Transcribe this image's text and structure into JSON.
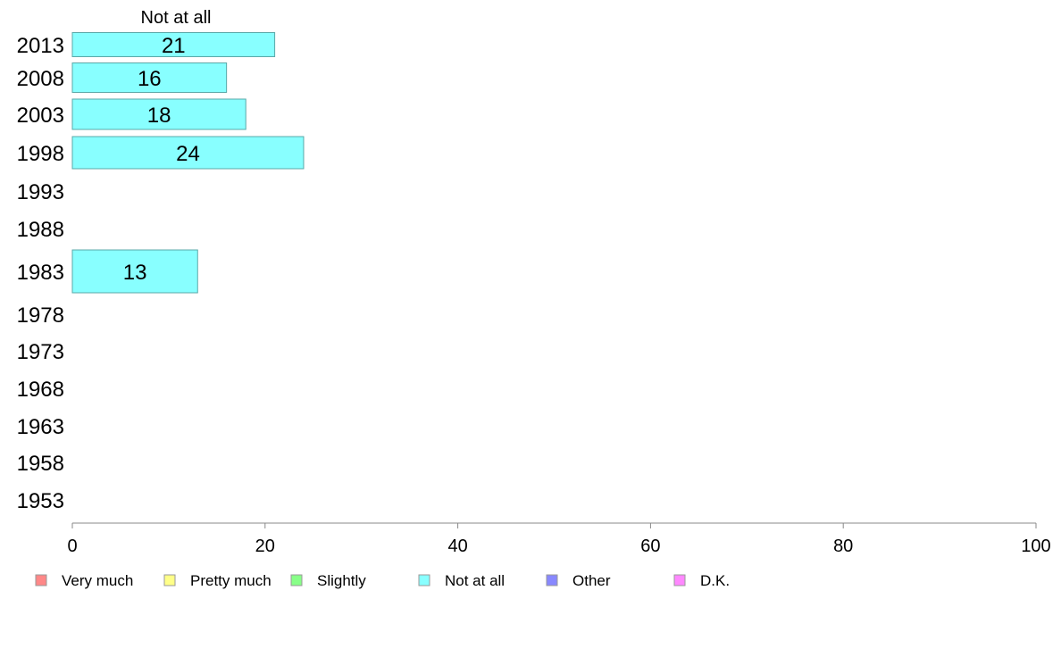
{
  "chart_data": {
    "type": "bar",
    "orientation": "horizontal",
    "column_title": "Not at all",
    "categories": [
      "2013",
      "2008",
      "2003",
      "1998",
      "1993",
      "1988",
      "1983",
      "1978",
      "1973",
      "1968",
      "1963",
      "1958",
      "1953"
    ],
    "series": [
      {
        "name": "Not at all",
        "values": [
          21,
          16,
          18,
          24,
          null,
          null,
          13,
          null,
          null,
          null,
          null,
          null,
          null
        ],
        "color": "#88ffff"
      }
    ],
    "xlim": [
      0,
      100
    ],
    "xticks": [
      0,
      20,
      40,
      60,
      80,
      100
    ],
    "grid": false,
    "legend_position": "bottom",
    "legend": [
      {
        "label": "Very much",
        "color": "#ff8888"
      },
      {
        "label": "Pretty much",
        "color": "#ffff88"
      },
      {
        "label": "Slightly",
        "color": "#88ff88"
      },
      {
        "label": "Not at all",
        "color": "#88ffff"
      },
      {
        "label": "Other",
        "color": "#8888ff"
      },
      {
        "label": "D.K.",
        "color": "#ff88ff"
      }
    ]
  }
}
